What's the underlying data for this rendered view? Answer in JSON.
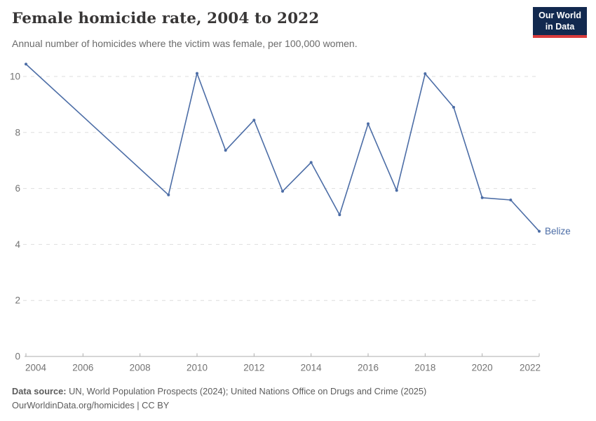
{
  "header": {
    "title": "Female homicide rate, 2004 to 2022",
    "subtitle": "Annual number of homicides where the victim was female, per 100,000 women.",
    "logo": {
      "line1": "Our World",
      "line2": "in Data"
    }
  },
  "chart_data": {
    "type": "line",
    "title": "Female homicide rate, 2004 to 2022",
    "xlabel": "",
    "ylabel": "",
    "grid": "horizontal-dashed",
    "legend_position": "end-of-line-label",
    "xlim": [
      2004,
      2022
    ],
    "ylim": [
      0,
      10.6
    ],
    "x_ticks": [
      2004,
      2006,
      2008,
      2010,
      2012,
      2014,
      2016,
      2018,
      2020,
      2022
    ],
    "y_ticks": [
      0,
      2,
      4,
      6,
      8,
      10
    ],
    "series": [
      {
        "name": "Belize",
        "color": "#4C6DA6",
        "x": [
          2004,
          2009,
          2010,
          2011,
          2012,
          2013,
          2014,
          2015,
          2016,
          2017,
          2018,
          2019,
          2020,
          2021,
          2022
        ],
        "values": [
          10.44,
          5.77,
          10.11,
          7.36,
          8.44,
          5.9,
          6.93,
          5.06,
          8.31,
          5.93,
          10.1,
          8.9,
          5.67,
          5.59,
          4.47
        ]
      }
    ],
    "end_label": "Belize"
  },
  "colors": {
    "line": "#4C6DA6",
    "gridline": "#dedede",
    "axis": "#adadad",
    "tick_text": "#737373",
    "logo_bg": "#12294f",
    "logo_accent": "#d93b3c"
  },
  "footer": {
    "source_label": "Data source:",
    "source_text": " UN, World Population Prospects (2024); United Nations Office on Drugs and Crime (2025)",
    "citation": "OurWorldinData.org/homicides | CC BY"
  }
}
